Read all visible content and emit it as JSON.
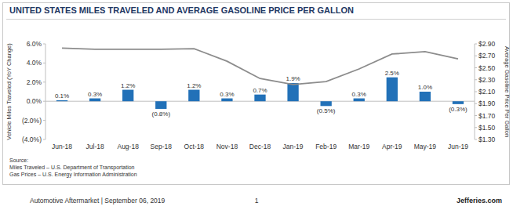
{
  "chart_data": {
    "type": "bar",
    "title": "UNITED STATES MILES TRAVELED AND AVERAGE GASOLINE PRICE PER GALLON",
    "categories": [
      "Jun-18",
      "Jul-18",
      "Aug-18",
      "Sep-18",
      "Oct-18",
      "Nov-18",
      "Dec-18",
      "Jan-19",
      "Feb-19",
      "Mar-19",
      "Apr-19",
      "May-19",
      "Jun-19"
    ],
    "series": [
      {
        "type": "bar",
        "color": "#2271b8",
        "values": [
          0.1,
          0.3,
          1.2,
          -0.8,
          1.2,
          0.3,
          0.7,
          1.9,
          -0.5,
          0.3,
          2.5,
          1.0,
          -0.3
        ],
        "value_labels": [
          "0.1%",
          "0.3%",
          "1.2%",
          "(0.8%)",
          "1.2%",
          "0.3%",
          "0.7%",
          "1.9%",
          "(0.5%)",
          "0.3%",
          "2.5%",
          "1.0%",
          "(0.3%)"
        ]
      },
      {
        "type": "line",
        "axis": "y2",
        "color": "#8c8c8c",
        "values": [
          2.83,
          2.81,
          2.81,
          2.81,
          2.82,
          2.61,
          2.32,
          2.22,
          2.27,
          2.48,
          2.73,
          2.77,
          2.65
        ]
      }
    ],
    "ylabel": "Vehicle Miles Traveled (YoY Change)",
    "y2label": "Average Gasoline Price Per Gallon",
    "ylim": [
      -4,
      6
    ],
    "yticks": [
      {
        "value": -4,
        "label": "(4.0%)"
      },
      {
        "value": -2,
        "label": "(2.0%)"
      },
      {
        "value": 0,
        "label": "0.0%"
      },
      {
        "value": 2,
        "label": "2.0%"
      },
      {
        "value": 4,
        "label": "4.0%"
      },
      {
        "value": 6,
        "label": "6.0%"
      }
    ],
    "y2lim": [
      1.3,
      2.9
    ],
    "y2ticks": [
      {
        "value": 1.3,
        "label": "$1.30"
      },
      {
        "value": 1.5,
        "label": "$1.50"
      },
      {
        "value": 1.7,
        "label": "$1.70"
      },
      {
        "value": 1.9,
        "label": "$1.90"
      },
      {
        "value": 2.1,
        "label": "$2.10"
      },
      {
        "value": 2.3,
        "label": "$2.30"
      },
      {
        "value": 2.5,
        "label": "$2.50"
      },
      {
        "value": 2.7,
        "label": "$2.70"
      },
      {
        "value": 2.9,
        "label": "$2.90"
      }
    ],
    "data_labels": true,
    "grid": false,
    "notes": [
      "Source:",
      "Miles Traveled – U.S. Department of Transportation",
      "Gas Prices – U.S. Energy Information Administration"
    ]
  },
  "footer": {
    "left": "Automotive Aftermarket | September 06, 2019",
    "page": "1",
    "right": "Jefferies.com"
  }
}
